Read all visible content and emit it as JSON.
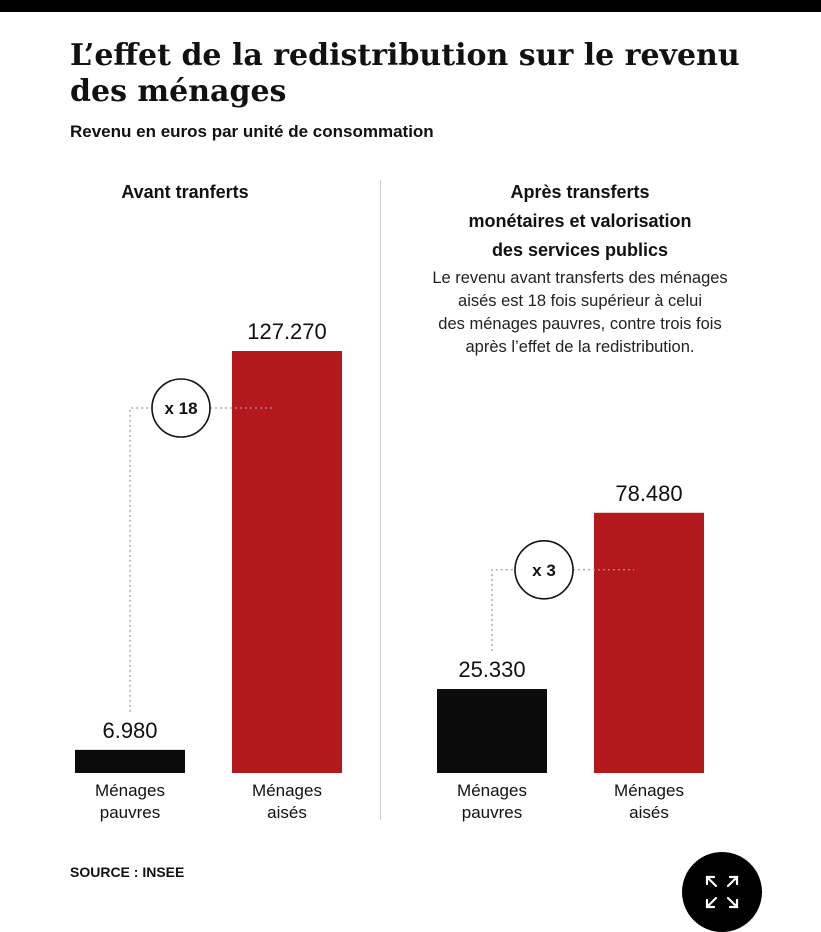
{
  "header": {
    "title": "L’effet de la redistribution sur le revenu des ménages",
    "subtitle": "Revenu en euros par unité de consommation"
  },
  "panels": {
    "left": {
      "title": "Avant tranferts"
    },
    "right": {
      "title_lines": [
        "Après transferts",
        "monétaires et valorisation",
        "des services publics"
      ],
      "note_lines": [
        "Le revenu avant transferts des ménages",
        "aisés est 18 fois supérieur à celui",
        "des ménages pauvres, contre trois fois",
        "après l’effet de la redistribution."
      ]
    }
  },
  "footer": {
    "source": "SOURCE : INSEE"
  },
  "controls": {
    "expand_icon": "expand-arrows-icon"
  },
  "colors": {
    "poor": "#0b0b0b",
    "rich": "#b3191c",
    "dotted": "#9a9a9a"
  },
  "chart_data": [
    {
      "type": "bar",
      "title": "Avant tranferts",
      "categories": [
        [
          "Ménages",
          "pauvres"
        ],
        [
          "Ménages",
          "aisés"
        ]
      ],
      "values": [
        6980,
        127270
      ],
      "value_labels": [
        "6.980",
        "127.270"
      ],
      "ratio_label": "x 18",
      "ylim": [
        0,
        127270
      ]
    },
    {
      "type": "bar",
      "title": "Après transferts monétaires et valorisation des services publics",
      "categories": [
        [
          "Ménages",
          "pauvres"
        ],
        [
          "Ménages",
          "aisés"
        ]
      ],
      "values": [
        25330,
        78480
      ],
      "value_labels": [
        "25.330",
        "78.480"
      ],
      "ratio_label": "x 3",
      "ylim": [
        0,
        127270
      ]
    }
  ]
}
